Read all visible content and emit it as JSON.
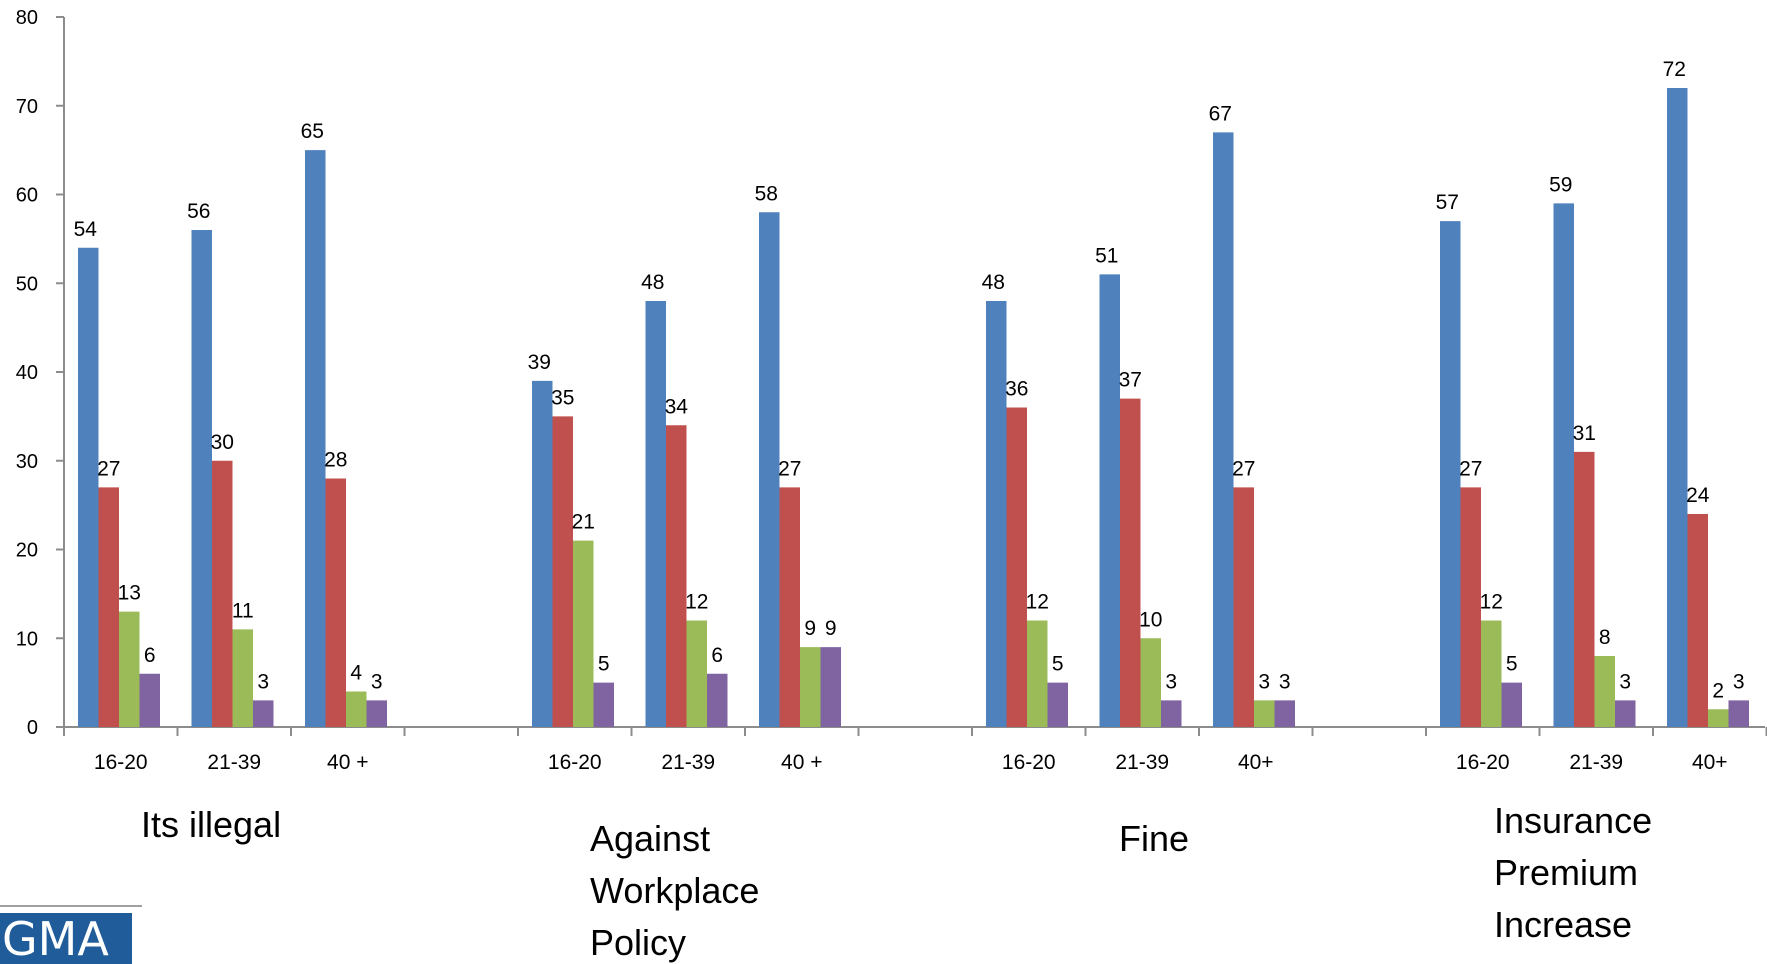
{
  "chart_data": {
    "type": "bar",
    "title": "",
    "xlabel": "",
    "ylabel": "",
    "ylim": [
      0,
      80
    ],
    "y_ticks": [
      0,
      10,
      20,
      30,
      40,
      50,
      60,
      70,
      80
    ],
    "grid": false,
    "legend": "none",
    "series_colors": [
      "#4f81bd",
      "#c0504d",
      "#9bbb59",
      "#8064a2"
    ],
    "groups": [
      {
        "label": [
          "Its illegal"
        ],
        "categories": [
          "16-20",
          "21-39",
          "40 +"
        ],
        "values": [
          [
            54,
            27,
            13,
            6
          ],
          [
            56,
            30,
            11,
            3
          ],
          [
            65,
            28,
            4,
            3
          ]
        ]
      },
      {
        "label": [
          "Against",
          "Workplace",
          "Policy"
        ],
        "categories": [
          "16-20",
          "21-39",
          "40 +"
        ],
        "values": [
          [
            39,
            35,
            21,
            5
          ],
          [
            48,
            34,
            12,
            6
          ],
          [
            58,
            27,
            9,
            9
          ]
        ]
      },
      {
        "label": [
          "Fine"
        ],
        "categories": [
          "16-20",
          "21-39",
          "40+"
        ],
        "values": [
          [
            48,
            36,
            12,
            5
          ],
          [
            51,
            37,
            10,
            3
          ],
          [
            67,
            27,
            3,
            3
          ]
        ]
      },
      {
        "label": [
          "Insurance",
          "Premium",
          "Increase"
        ],
        "categories": [
          "16-20",
          "21-39",
          "40+"
        ],
        "values": [
          [
            57,
            27,
            12,
            5
          ],
          [
            59,
            31,
            8,
            3
          ],
          [
            72,
            24,
            2,
            3
          ]
        ]
      }
    ]
  },
  "logo": {
    "text": "GMA",
    "color": "#1f5c99"
  }
}
